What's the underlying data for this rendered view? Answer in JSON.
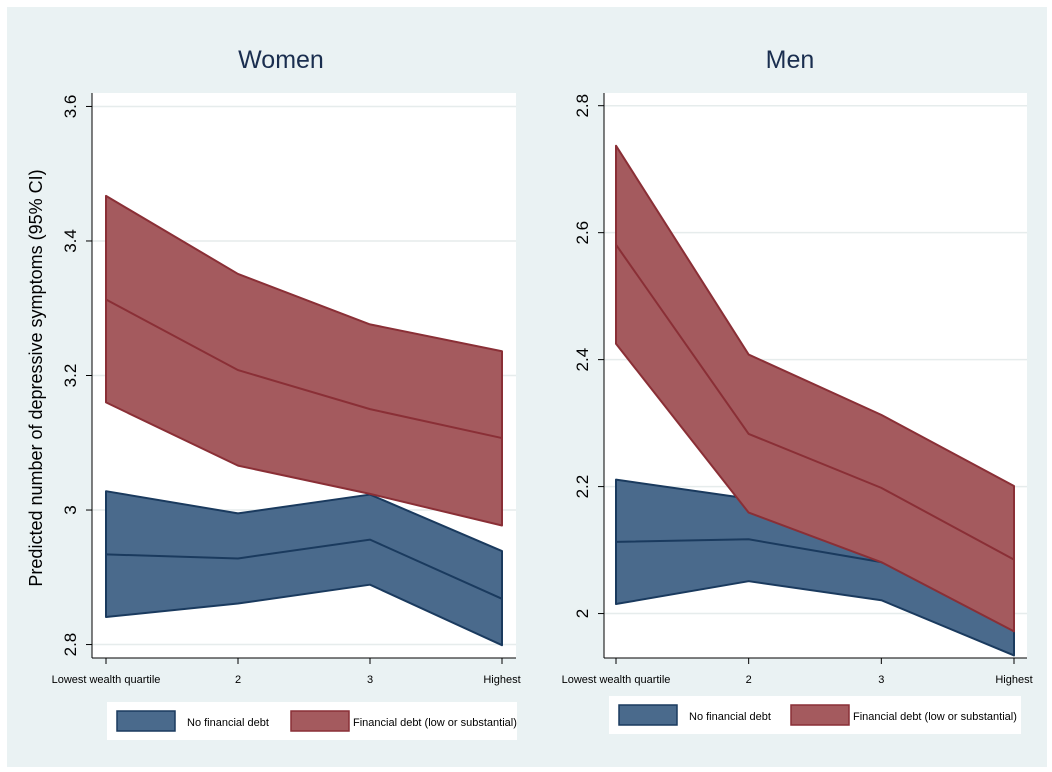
{
  "colors": {
    "background": "#eaf2f3",
    "plot_background": "#ffffff",
    "no_debt_fill": "#4a6a8c",
    "no_debt_line": "#1a3a5e",
    "debt_fill": "#a45a5e",
    "debt_line": "#8a2f36",
    "title_color": "#1a2e4f"
  },
  "chart_data": [
    {
      "type": "area",
      "title": "Women",
      "ylabel": "Predicted number of depressive symptoms (95% CI)",
      "xlabel": "",
      "categories": [
        "Lowest wealth quartile",
        "2",
        "3",
        "Highest"
      ],
      "ylim": [
        2.78,
        3.62
      ],
      "yticks": [
        2.8,
        3,
        3.2,
        3.4,
        3.6
      ],
      "ytick_labels": [
        "2.8",
        "3",
        "3.2",
        "3.4",
        "3.6"
      ],
      "grid": true,
      "legend_position": "bottom",
      "series": [
        {
          "name": "No financial debt",
          "values": [
            2.934,
            2.928,
            2.956,
            2.868
          ],
          "lower": [
            2.841,
            2.861,
            2.889,
            2.799
          ],
          "upper": [
            3.028,
            2.995,
            3.023,
            2.939
          ]
        },
        {
          "name": "Financial debt (low or substantial)",
          "values": [
            3.313,
            3.208,
            3.15,
            3.107
          ],
          "lower": [
            3.16,
            3.066,
            3.024,
            2.977
          ],
          "upper": [
            3.467,
            3.351,
            3.276,
            3.236
          ]
        }
      ]
    },
    {
      "type": "area",
      "title": "Men",
      "ylabel": "",
      "xlabel": "",
      "categories": [
        "Lowest wealth quartile",
        "2",
        "3",
        "Highest"
      ],
      "ylim": [
        1.93,
        2.82
      ],
      "yticks": [
        2,
        2.2,
        2.4,
        2.6,
        2.8
      ],
      "ytick_labels": [
        "2",
        "2.2",
        "2.4",
        "2.6",
        "2.8"
      ],
      "grid": true,
      "legend_position": "bottom",
      "series": [
        {
          "name": "No financial debt",
          "values": [
            2.113,
            2.117,
            2.081,
            1.997
          ],
          "lower": [
            2.015,
            2.051,
            2.021,
            1.934
          ],
          "upper": [
            2.211,
            2.181,
            2.081,
            2.059
          ]
        },
        {
          "name": "Financial debt (low or substantial)",
          "values": [
            2.581,
            2.283,
            2.198,
            2.085
          ],
          "lower": [
            2.425,
            2.159,
            2.081,
            1.972
          ],
          "upper": [
            2.737,
            2.408,
            2.313,
            2.201
          ]
        }
      ]
    }
  ]
}
